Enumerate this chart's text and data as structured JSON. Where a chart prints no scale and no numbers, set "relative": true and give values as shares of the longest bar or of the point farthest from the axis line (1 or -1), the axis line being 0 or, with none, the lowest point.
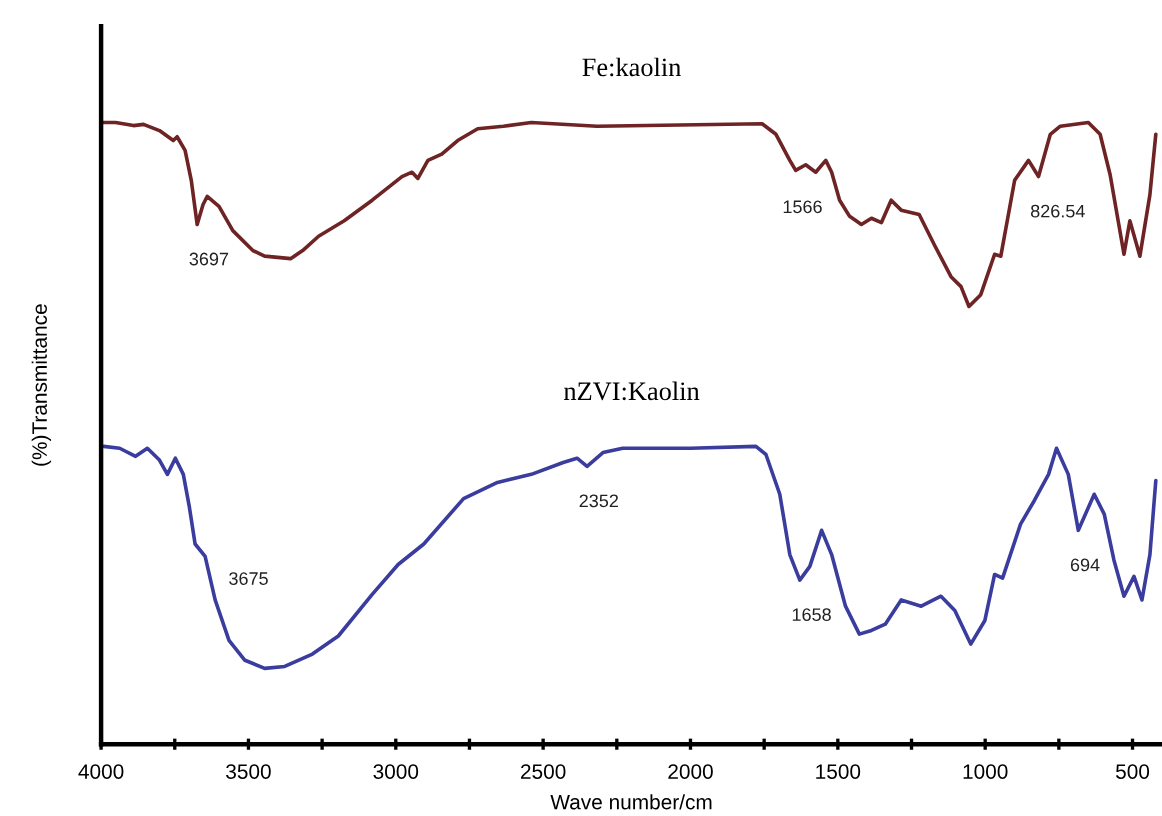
{
  "chart_data": {
    "type": "line",
    "relative": true,
    "xlabel": "Wave number/cm",
    "ylabel": "(%)Transmittance",
    "xlim": [
      4000,
      400
    ],
    "xticks": [
      4000,
      {
        "value": 3750,
        "label": null
      },
      3500,
      {
        "value": 3250,
        "label": null
      },
      3000,
      {
        "value": 2750,
        "label": null
      },
      2500,
      {
        "value": 2250,
        "label": null
      },
      2000,
      {
        "value": 1750,
        "label": null
      },
      1500,
      {
        "value": 1250,
        "label": null
      },
      1000,
      {
        "value": 750,
        "label": null
      },
      500
    ],
    "series": [
      {
        "name": "Fe:kaolin",
        "color": "#6e2424",
        "x": [
          3993,
          3951,
          3890,
          3856,
          3802,
          3755,
          3742,
          3715,
          3694,
          3674,
          3654,
          3640,
          3600,
          3553,
          3485,
          3445,
          3357,
          3316,
          3262,
          3175,
          3080,
          2979,
          2945,
          2925,
          2891,
          2844,
          2790,
          2722,
          2635,
          2540,
          2317,
          1757,
          1710,
          1663,
          1643,
          1609,
          1575,
          1541,
          1521,
          1494,
          1460,
          1420,
          1386,
          1352,
          1319,
          1285,
          1224,
          1170,
          1116,
          1082,
          1055,
          1015,
          968,
          947,
          900,
          853,
          819,
          779,
          745,
          650,
          610,
          576,
          529,
          509,
          475,
          441,
          421
        ],
        "values": [
          1.0,
          1.0,
          0.995,
          0.997,
          0.987,
          0.971,
          0.977,
          0.955,
          0.907,
          0.836,
          0.868,
          0.881,
          0.865,
          0.826,
          0.794,
          0.785,
          0.781,
          0.794,
          0.817,
          0.842,
          0.875,
          0.913,
          0.92,
          0.91,
          0.939,
          0.949,
          0.971,
          0.99,
          0.994,
          1.0,
          0.994,
          0.998,
          0.981,
          0.939,
          0.923,
          0.932,
          0.92,
          0.939,
          0.92,
          0.875,
          0.849,
          0.836,
          0.846,
          0.839,
          0.875,
          0.859,
          0.852,
          0.801,
          0.752,
          0.736,
          0.704,
          0.723,
          0.788,
          0.785,
          0.907,
          0.939,
          0.913,
          0.981,
          0.994,
          1.0,
          0.981,
          0.916,
          0.788,
          0.842,
          0.785,
          0.884,
          0.981
        ]
      },
      {
        "name": "nZVI:Kaolin",
        "color": "#3a3d9e",
        "x": [
          3991,
          3937,
          3883,
          3843,
          3802,
          3775,
          3748,
          3721,
          3701,
          3681,
          3647,
          3613,
          3566,
          3512,
          3445,
          3377,
          3283,
          3195,
          3080,
          2992,
          2905,
          2770,
          2655,
          2540,
          2432,
          2385,
          2351,
          2297,
          2230,
          2000,
          1778,
          1744,
          1697,
          1663,
          1629,
          1595,
          1555,
          1521,
          1474,
          1427,
          1386,
          1339,
          1285,
          1217,
          1150,
          1103,
          1049,
          1001,
          968,
          941,
          880,
          833,
          785,
          758,
          718,
          684,
          630,
          596,
          563,
          529,
          495,
          468,
          441,
          421
        ],
        "values": [
          0.479,
          0.476,
          0.463,
          0.476,
          0.457,
          0.434,
          0.46,
          0.434,
          0.383,
          0.322,
          0.302,
          0.232,
          0.167,
          0.135,
          0.122,
          0.125,
          0.145,
          0.174,
          0.241,
          0.289,
          0.322,
          0.395,
          0.421,
          0.434,
          0.453,
          0.46,
          0.447,
          0.469,
          0.476,
          0.476,
          0.479,
          0.466,
          0.402,
          0.305,
          0.264,
          0.286,
          0.344,
          0.305,
          0.222,
          0.177,
          0.183,
          0.193,
          0.232,
          0.222,
          0.238,
          0.215,
          0.161,
          0.199,
          0.273,
          0.267,
          0.354,
          0.392,
          0.434,
          0.476,
          0.434,
          0.344,
          0.402,
          0.37,
          0.296,
          0.238,
          0.27,
          0.232,
          0.305,
          0.424
        ]
      }
    ],
    "annotations": [
      {
        "text": "3697",
        "x": 3674,
        "y": 0.836
      },
      {
        "text": "1566",
        "x": 1575,
        "y": 0.92
      },
      {
        "text": "826.54",
        "x": 819,
        "y": 0.913
      },
      {
        "text": "3675",
        "x": 3681,
        "y": 0.322
      },
      {
        "text": "2352",
        "x": 2351,
        "y": 0.447
      },
      {
        "text": "1658",
        "x": 1629,
        "y": 0.264
      },
      {
        "text": "694",
        "x": 684,
        "y": 0.344
      }
    ]
  }
}
